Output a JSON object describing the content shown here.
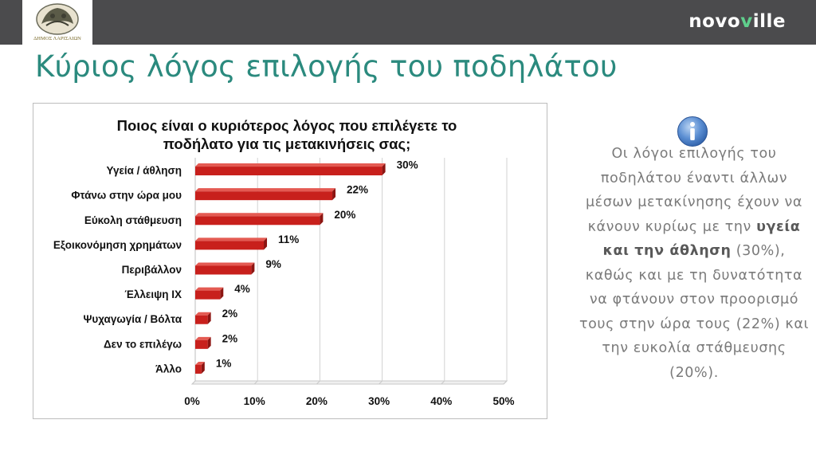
{
  "header": {
    "logo_caption": "ΔΗΜΟΣ ΛΑΡΙΣΑΙΩΝ",
    "brand_left": "novo",
    "brand_v": "v",
    "brand_right": "ille"
  },
  "page": {
    "title": "Κύριος λόγος επιλογής του ποδηλάτου"
  },
  "chart_data": {
    "type": "bar",
    "orientation": "horizontal",
    "title": [
      "Ποιος είναι ο κυριότερος λόγος που επιλέγετε το",
      "ποδήλατο για τις μετακινήσεις σας;"
    ],
    "categories": [
      "Υγεία  / άθληση",
      "Φτάνω στην ώρα μου",
      "Εύκολη στάθμευση",
      "Εξοικονόμηση χρημάτων",
      "Περιβάλλον",
      "Έλλειψη ΙΧ",
      "Ψυχαγωγία / Βόλτα",
      "Δεν το επιλέγω",
      "Άλλο"
    ],
    "values": [
      30,
      22,
      20,
      11,
      9,
      4,
      2,
      2,
      1
    ],
    "data_labels": [
      "30%",
      "22%",
      "20%",
      "11%",
      "9%",
      "4%",
      "2%",
      "2%",
      "1%"
    ],
    "xlim": [
      0,
      50
    ],
    "xticks": [
      0,
      10,
      20,
      30,
      40,
      50
    ],
    "xtick_labels": [
      "0%",
      "10%",
      "20%",
      "30%",
      "40%",
      "50%"
    ],
    "grid": true,
    "bar_color": "#c8201c",
    "legend": "none"
  },
  "info": {
    "icon": "info-icon",
    "text_before": "Οι λόγοι επιλογής του ποδηλάτου έναντι άλλων μέσων μετακίνησης έχουν να κάνουν κυρίως με την ",
    "text_bold": "υγεία και την άθληση",
    "text_after": " (30%), καθώς και με τη δυνατότητα να φτάνουν στον προορισμό τους στην ώρα τους (22%) και την ευκολία στάθμευσης (20%)."
  }
}
